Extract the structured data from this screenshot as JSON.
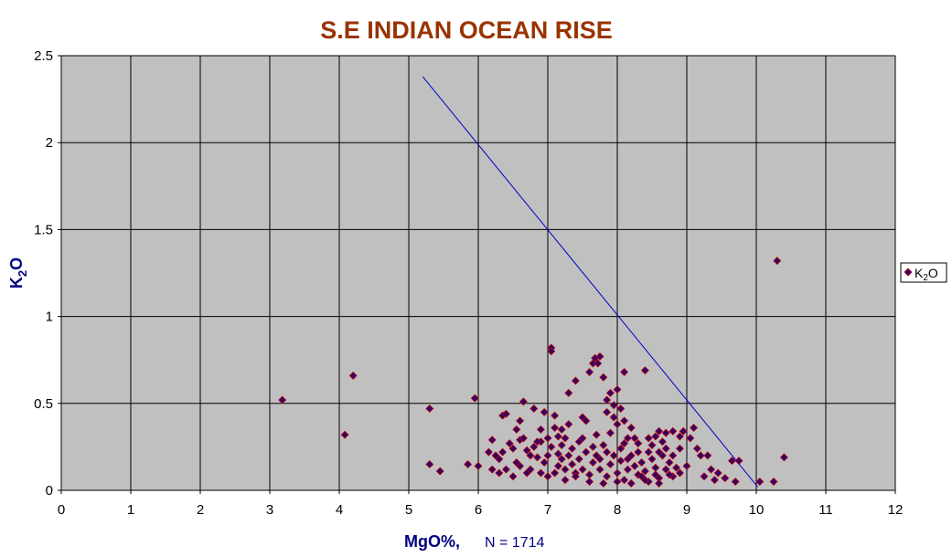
{
  "chart_data": {
    "type": "scatter",
    "title": "S.E INDIAN OCEAN RISE",
    "xlabel": "MgO%,",
    "xlabel_note": "N = 1714",
    "ylabel": {
      "main": "K",
      "sub": "2",
      "end": "O"
    },
    "xlim": [
      0,
      12
    ],
    "ylim": [
      0,
      2.5
    ],
    "x_ticks": [
      "0",
      "1",
      "2",
      "3",
      "4",
      "5",
      "6",
      "7",
      "8",
      "9",
      "10",
      "11",
      "12"
    ],
    "y_ticks": [
      "0",
      "0.5",
      "1",
      "1.5",
      "2",
      "2.5"
    ],
    "grid": true,
    "legend_position": "right",
    "series": [
      {
        "name": {
          "main": "K",
          "sub": "2",
          "end": "O"
        },
        "marker": "diamond",
        "fill_color": "#330066",
        "edge_color": "#cc0000",
        "points": [
          [
            3.18,
            0.52
          ],
          [
            4.08,
            0.32
          ],
          [
            4.2,
            0.66
          ],
          [
            5.3,
            0.47
          ],
          [
            5.3,
            0.15
          ],
          [
            5.45,
            0.11
          ],
          [
            5.85,
            0.15
          ],
          [
            5.95,
            0.53
          ],
          [
            6.0,
            0.14
          ],
          [
            6.2,
            0.29
          ],
          [
            6.3,
            0.18
          ],
          [
            6.35,
            0.43
          ],
          [
            6.4,
            0.44
          ],
          [
            6.5,
            0.24
          ],
          [
            6.55,
            0.35
          ],
          [
            6.6,
            0.29
          ],
          [
            6.65,
            0.51
          ],
          [
            6.7,
            0.23
          ],
          [
            6.8,
            0.47
          ],
          [
            6.85,
            0.19
          ],
          [
            6.9,
            0.28
          ],
          [
            6.95,
            0.45
          ],
          [
            7.0,
            0.3
          ],
          [
            7.05,
            0.82
          ],
          [
            7.05,
            0.8
          ],
          [
            7.1,
            0.43
          ],
          [
            7.15,
            0.21
          ],
          [
            7.2,
            0.35
          ],
          [
            7.25,
            0.12
          ],
          [
            7.3,
            0.56
          ],
          [
            7.4,
            0.63
          ],
          [
            7.45,
            0.28
          ],
          [
            7.55,
            0.4
          ],
          [
            7.6,
            0.68
          ],
          [
            7.65,
            0.73
          ],
          [
            7.68,
            0.76
          ],
          [
            7.72,
            0.73
          ],
          [
            7.75,
            0.77
          ],
          [
            7.8,
            0.65
          ],
          [
            7.85,
            0.52
          ],
          [
            7.9,
            0.56
          ],
          [
            7.95,
            0.49
          ],
          [
            8.0,
            0.38
          ],
          [
            8.05,
            0.47
          ],
          [
            8.1,
            0.68
          ],
          [
            8.15,
            0.3
          ],
          [
            8.2,
            0.36
          ],
          [
            8.3,
            0.27
          ],
          [
            8.4,
            0.69
          ],
          [
            8.45,
            0.22
          ],
          [
            8.55,
            0.31
          ],
          [
            8.6,
            0.34
          ],
          [
            8.7,
            0.33
          ],
          [
            8.8,
            0.34
          ],
          [
            8.9,
            0.31
          ],
          [
            8.95,
            0.34
          ],
          [
            9.05,
            0.3
          ],
          [
            9.1,
            0.36
          ],
          [
            9.15,
            0.24
          ],
          [
            9.2,
            0.2
          ],
          [
            9.3,
            0.2
          ],
          [
            9.35,
            0.12
          ],
          [
            9.45,
            0.1
          ],
          [
            9.55,
            0.07
          ],
          [
            9.65,
            0.17
          ],
          [
            9.7,
            0.05
          ],
          [
            9.75,
            0.17
          ],
          [
            10.05,
            0.05
          ],
          [
            10.25,
            0.05
          ],
          [
            10.3,
            1.32
          ],
          [
            10.4,
            0.19
          ],
          [
            6.2,
            0.12
          ],
          [
            6.25,
            0.2
          ],
          [
            6.4,
            0.12
          ],
          [
            6.45,
            0.27
          ],
          [
            6.6,
            0.14
          ],
          [
            6.7,
            0.1
          ],
          [
            6.75,
            0.12
          ],
          [
            6.8,
            0.25
          ],
          [
            6.9,
            0.1
          ],
          [
            6.95,
            0.16
          ],
          [
            7.0,
            0.08
          ],
          [
            7.05,
            0.25
          ],
          [
            7.1,
            0.1
          ],
          [
            7.15,
            0.14
          ],
          [
            7.2,
            0.18
          ],
          [
            7.25,
            0.06
          ],
          [
            7.3,
            0.2
          ],
          [
            7.35,
            0.15
          ],
          [
            7.4,
            0.1
          ],
          [
            7.45,
            0.18
          ],
          [
            7.5,
            0.12
          ],
          [
            7.55,
            0.22
          ],
          [
            7.6,
            0.09
          ],
          [
            7.65,
            0.16
          ],
          [
            7.7,
            0.2
          ],
          [
            7.75,
            0.12
          ],
          [
            7.8,
            0.26
          ],
          [
            7.85,
            0.08
          ],
          [
            7.9,
            0.15
          ],
          [
            7.95,
            0.2
          ],
          [
            8.0,
            0.1
          ],
          [
            8.05,
            0.17
          ],
          [
            8.1,
            0.06
          ],
          [
            8.15,
            0.12
          ],
          [
            8.2,
            0.2
          ],
          [
            8.25,
            0.14
          ],
          [
            8.3,
            0.09
          ],
          [
            8.35,
            0.16
          ],
          [
            8.4,
            0.11
          ],
          [
            8.45,
            0.05
          ],
          [
            8.5,
            0.18
          ],
          [
            8.55,
            0.13
          ],
          [
            8.6,
            0.07
          ],
          [
            8.65,
            0.2
          ],
          [
            8.7,
            0.12
          ],
          [
            8.75,
            0.16
          ],
          [
            8.8,
            0.08
          ],
          [
            8.85,
            0.13
          ],
          [
            8.9,
            0.1
          ],
          [
            9.0,
            0.14
          ],
          [
            6.15,
            0.22
          ],
          [
            6.55,
            0.16
          ],
          [
            6.65,
            0.3
          ],
          [
            6.85,
            0.28
          ],
          [
            7.2,
            0.26
          ],
          [
            7.5,
            0.3
          ],
          [
            7.7,
            0.32
          ],
          [
            7.9,
            0.33
          ],
          [
            8.1,
            0.27
          ],
          [
            8.3,
            0.22
          ],
          [
            8.5,
            0.26
          ],
          [
            8.7,
            0.24
          ],
          [
            7.4,
            0.08
          ],
          [
            7.6,
            0.05
          ],
          [
            7.8,
            0.04
          ],
          [
            8.0,
            0.05
          ],
          [
            8.2,
            0.04
          ],
          [
            8.4,
            0.06
          ],
          [
            8.6,
            0.04
          ],
          [
            6.3,
            0.1
          ],
          [
            6.5,
            0.08
          ],
          [
            7.0,
            0.2
          ],
          [
            7.3,
            0.38
          ],
          [
            7.5,
            0.42
          ],
          [
            7.95,
            0.42
          ],
          [
            8.0,
            0.58
          ],
          [
            7.85,
            0.45
          ],
          [
            8.1,
            0.4
          ],
          [
            6.9,
            0.35
          ],
          [
            7.1,
            0.36
          ],
          [
            6.6,
            0.4
          ],
          [
            8.6,
            0.22
          ],
          [
            8.8,
            0.2
          ],
          [
            8.9,
            0.24
          ],
          [
            7.15,
            0.31
          ],
          [
            7.35,
            0.24
          ],
          [
            7.65,
            0.25
          ],
          [
            7.85,
            0.22
          ],
          [
            8.05,
            0.24
          ],
          [
            8.25,
            0.3
          ],
          [
            8.45,
            0.3
          ],
          [
            8.65,
            0.28
          ],
          [
            6.35,
            0.22
          ],
          [
            6.75,
            0.2
          ],
          [
            7.25,
            0.3
          ],
          [
            7.75,
            0.18
          ],
          [
            8.15,
            0.18
          ],
          [
            8.35,
            0.08
          ],
          [
            8.55,
            0.09
          ],
          [
            8.75,
            0.09
          ],
          [
            9.25,
            0.08
          ],
          [
            9.4,
            0.06
          ]
        ]
      }
    ],
    "trend_line": {
      "color": "#0000cc",
      "from": [
        5.2,
        2.38
      ],
      "to": [
        10.02,
        0.02
      ]
    }
  }
}
